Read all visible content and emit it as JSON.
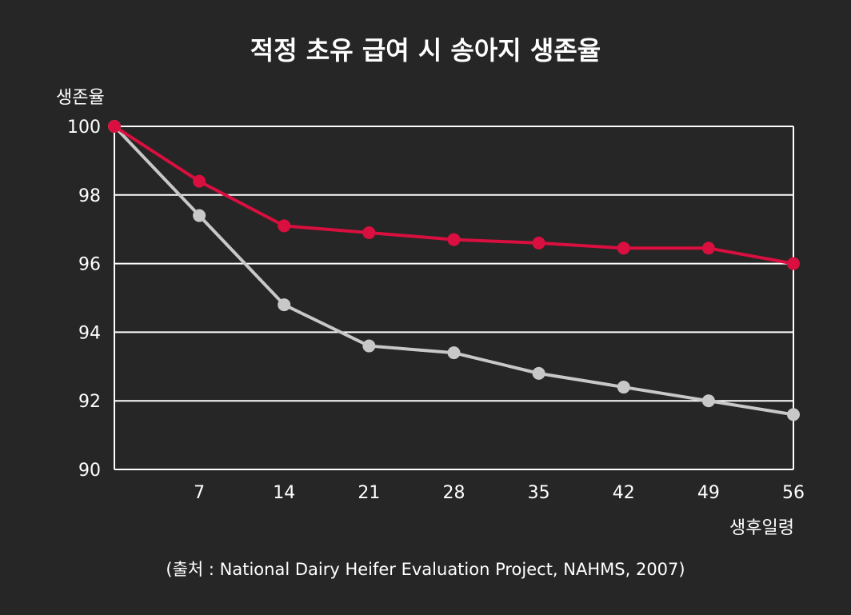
{
  "title": "적정 초유 급여 시 송아지 생존율",
  "source": "(출처 : National Dairy Heifer Evaluation Project, NAHMS, 2007)",
  "colors": {
    "background": "#262626",
    "axis": "#ffffff",
    "grid": "#ffffff",
    "series_fed": "#d90f3f",
    "series_other": "#c8c8c8"
  },
  "chart_data": {
    "type": "line",
    "title": "적정 초유 급여 시 송아지 생존율",
    "xlabel": "생후일령",
    "ylabel": "생존율",
    "x": [
      0,
      7,
      14,
      21,
      28,
      35,
      42,
      49,
      56
    ],
    "x_tick_labels": [
      "7",
      "14",
      "21",
      "28",
      "35",
      "42",
      "49",
      "56"
    ],
    "x_ticks": [
      7,
      14,
      21,
      28,
      35,
      42,
      49,
      56
    ],
    "xlim": [
      0,
      56
    ],
    "ylim": [
      90,
      100
    ],
    "y_ticks": [
      90,
      92,
      94,
      96,
      98,
      100
    ],
    "y_tick_labels": [
      "90",
      "92",
      "94",
      "96",
      "98",
      "100"
    ],
    "grid": true,
    "series": [
      {
        "values": [
          100,
          98.4,
          97.1,
          96.9,
          96.7,
          96.6,
          96.45,
          96.45,
          96.0
        ],
        "color": "#d90f3f"
      },
      {
        "values": [
          100,
          97.4,
          94.8,
          93.6,
          93.4,
          92.8,
          92.4,
          92.0,
          91.6
        ],
        "color": "#c8c8c8"
      }
    ]
  }
}
